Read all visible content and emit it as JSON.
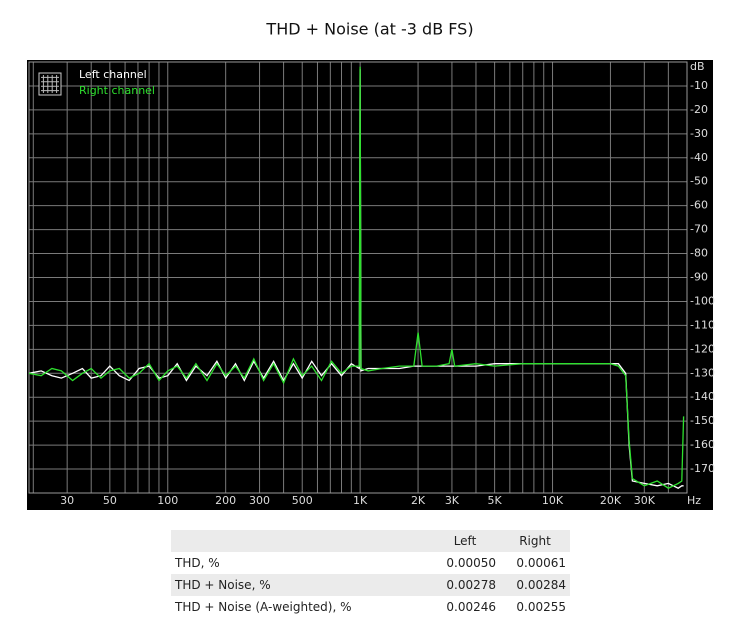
{
  "chart_data": {
    "type": "line",
    "title": "THD + Noise (at -3 dB FS)",
    "y_unit": "dB",
    "x_unit": "Hz",
    "log_x": true,
    "grid": true,
    "legend": "top-left",
    "xlim": [
      19,
      50000
    ],
    "ylim": [
      -180,
      0
    ],
    "xticks": [
      30,
      50,
      100,
      200,
      300,
      500,
      {
        "value": 1000,
        "label": "1K"
      },
      {
        "value": 2000,
        "label": "2K"
      },
      {
        "value": 3000,
        "label": "3K"
      },
      {
        "value": 5000,
        "label": "5K"
      },
      {
        "value": 10000,
        "label": "10K"
      },
      {
        "value": 20000,
        "label": "20K"
      },
      {
        "value": 30000,
        "label": "30K"
      }
    ],
    "x_minor_ticks": [
      20,
      40,
      60,
      70,
      80,
      90,
      400,
      600,
      700,
      800,
      900,
      4000,
      6000,
      7000,
      8000,
      9000,
      40000
    ],
    "yticks": [
      -10,
      -20,
      -30,
      -40,
      -50,
      -60,
      -70,
      -80,
      -90,
      -100,
      -110,
      -120,
      -130,
      -140,
      -150,
      -160,
      -170
    ],
    "x": [
      19,
      22,
      25,
      28,
      32,
      36,
      40,
      45,
      50,
      56,
      63,
      71,
      80,
      90,
      100,
      112,
      125,
      140,
      160,
      180,
      200,
      225,
      250,
      280,
      315,
      355,
      400,
      450,
      500,
      560,
      630,
      710,
      800,
      900,
      990,
      1000,
      1010,
      1100,
      1300,
      1600,
      1900,
      2000,
      2100,
      2500,
      2900,
      3000,
      3100,
      4000,
      5000,
      7000,
      10000,
      14000,
      20000,
      22000,
      24000,
      25000,
      26000,
      30000,
      35000,
      40000,
      45000,
      47000,
      48000
    ],
    "series": [
      {
        "name": "Left channel",
        "color": "#ffffff",
        "values": [
          -130,
          -129,
          -131,
          -132,
          -130,
          -128,
          -132,
          -131,
          -127,
          -131,
          -133,
          -128,
          -127,
          -132,
          -131,
          -126,
          -133,
          -127,
          -131,
          -125,
          -132,
          -126,
          -133,
          -125,
          -132,
          -125,
          -133,
          -126,
          -132,
          -125,
          -131,
          -126,
          -131,
          -126,
          -128,
          -3,
          -129,
          -128,
          -128,
          -128,
          -127,
          -127,
          -127,
          -127,
          -127,
          -127,
          -127,
          -127,
          -126,
          -126,
          -126,
          -126,
          -126,
          -126,
          -130,
          -160,
          -175,
          -176,
          -177,
          -176,
          -178,
          -177,
          -177
        ]
      },
      {
        "name": "Right channel",
        "color": "#2ee02e",
        "values": [
          -130,
          -131,
          -128,
          -129,
          -133,
          -130,
          -128,
          -132,
          -129,
          -128,
          -132,
          -130,
          -126,
          -133,
          -129,
          -127,
          -132,
          -126,
          -133,
          -126,
          -131,
          -127,
          -132,
          -124,
          -133,
          -126,
          -134,
          -124,
          -131,
          -127,
          -133,
          -125,
          -130,
          -127,
          -127,
          -2,
          -128,
          -129,
          -128,
          -127,
          -127,
          -113,
          -127,
          -127,
          -126,
          -120,
          -127,
          -126,
          -127,
          -126,
          -126,
          -126,
          -126,
          -127,
          -131,
          -158,
          -174,
          -177,
          -175,
          -178,
          -176,
          -175,
          -148
        ]
      }
    ]
  },
  "table": {
    "columns": [
      "Left",
      "Right"
    ],
    "rows": [
      [
        "THD, %",
        "0.00050",
        "0.00061"
      ],
      [
        "THD + Noise, %",
        "0.00278",
        "0.00284"
      ],
      [
        "THD + Noise (A-weighted), %",
        "0.00246",
        "0.00255"
      ]
    ]
  }
}
